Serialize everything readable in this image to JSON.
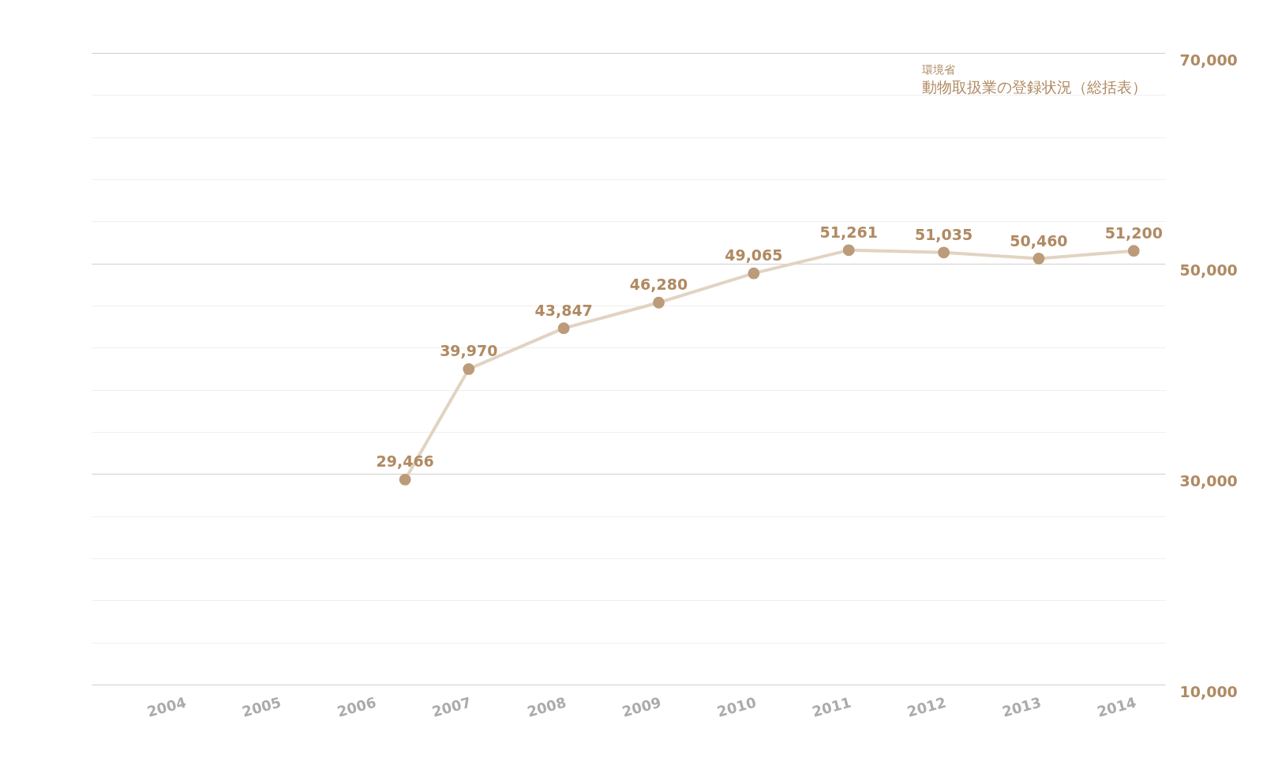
{
  "chart_data": {
    "type": "line",
    "annotations": [
      "環境省",
      "動物取扱業の登録状況（総括表）"
    ],
    "x": [
      2006.33,
      2007,
      2008,
      2009,
      2010,
      2011,
      2012,
      2013,
      2014
    ],
    "series": [
      {
        "color": "#e2d3c2",
        "values": [
          29466,
          39970,
          43847,
          46280,
          49065,
          51261,
          51035,
          50460,
          51200
        ],
        "value_labels": [
          "29,466",
          "39,970",
          "43,847",
          "46,280",
          "49,065",
          "51,261",
          "51,035",
          "50,460",
          "51,200"
        ]
      }
    ],
    "marker": "circle",
    "xlim": [
      2003.03,
      2014.33
    ],
    "xticks": [
      2004,
      2005,
      2006,
      2007,
      2008,
      2009,
      2010,
      2011,
      2012,
      2013,
      2014
    ],
    "ylim": [
      10000,
      70000
    ],
    "yticks": [
      {
        "value": 10000,
        "label": "10,000"
      },
      {
        "value": 14000,
        "label": null
      },
      {
        "value": 18000,
        "label": null
      },
      {
        "value": 22000,
        "label": null
      },
      {
        "value": 26000,
        "label": null
      },
      {
        "value": 30000,
        "label": "30,000"
      },
      {
        "value": 34000,
        "label": null
      },
      {
        "value": 38000,
        "label": null
      },
      {
        "value": 42000,
        "label": null
      },
      {
        "value": 46000,
        "label": null
      },
      {
        "value": 50000,
        "label": "50,000"
      },
      {
        "value": 54000,
        "label": null
      },
      {
        "value": 58000,
        "label": null
      },
      {
        "value": 62000,
        "label": null
      },
      {
        "value": 66000,
        "label": null
      },
      {
        "value": 70000,
        "label": "70,000"
      }
    ],
    "grid": "y"
  }
}
